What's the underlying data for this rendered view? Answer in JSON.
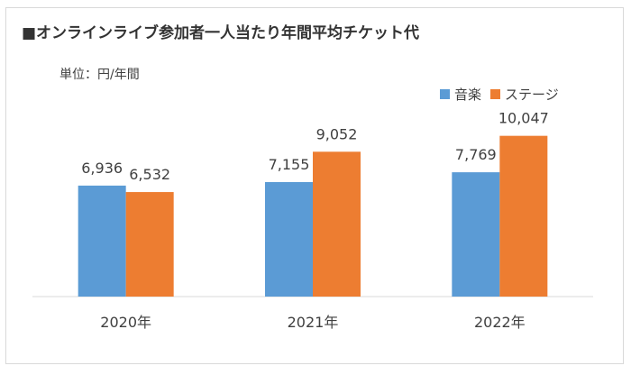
{
  "chart_data": {
    "type": "bar",
    "title": "■オンラインライブ参加者一人当たり年間平均チケット代",
    "unit_label": "単位：円/年間",
    "categories": [
      "2020年",
      "2021年",
      "2022年"
    ],
    "series": [
      {
        "name": "音楽",
        "color": "#5b9bd5",
        "values": [
          6936,
          7155,
          7769
        ],
        "labels": [
          "6,936",
          "7,155",
          "7,769"
        ]
      },
      {
        "name": "ステージ",
        "color": "#ed7d31",
        "values": [
          6532,
          9052,
          10047
        ],
        "labels": [
          "6,532",
          "9,052",
          "10,047"
        ]
      }
    ],
    "ylim": [
      0,
      12000
    ],
    "grid": false,
    "legend_position": "top-right"
  }
}
